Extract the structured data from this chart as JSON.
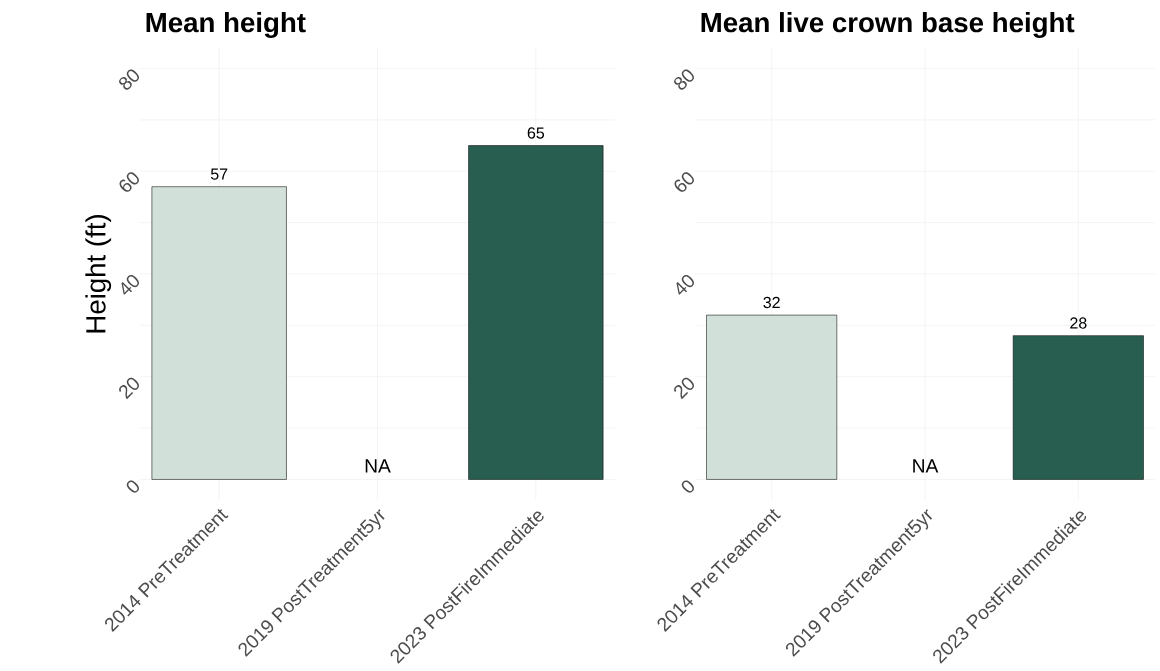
{
  "chart_data": [
    {
      "type": "bar",
      "title": "Mean height",
      "ylabel": "Height (ft)",
      "categories": [
        "2014 PreTreatment",
        "2019 PostTreatment5yr",
        "2023 PostFireImmediate"
      ],
      "values": [
        57,
        null,
        65
      ],
      "colors": [
        "#d1e0d8",
        "#7a9e90",
        "#285e4f"
      ],
      "value_labels": [
        "57",
        "NA",
        "65"
      ],
      "ylim": [
        -4,
        84
      ],
      "yticks": [
        0,
        20,
        40,
        60,
        80
      ],
      "grid": true
    },
    {
      "type": "bar",
      "title": "Mean live crown base height",
      "categories": [
        "2014 PreTreatment",
        "2019 PostTreatment5yr",
        "2023 PostFireImmediate"
      ],
      "values": [
        32,
        null,
        28
      ],
      "colors": [
        "#d1e0d8",
        "#7a9e90",
        "#285e4f"
      ],
      "value_labels": [
        "32",
        "NA",
        "28"
      ],
      "ylim": [
        -4,
        84
      ],
      "yticks": [
        0,
        20,
        40,
        60,
        80
      ],
      "grid": true
    }
  ]
}
